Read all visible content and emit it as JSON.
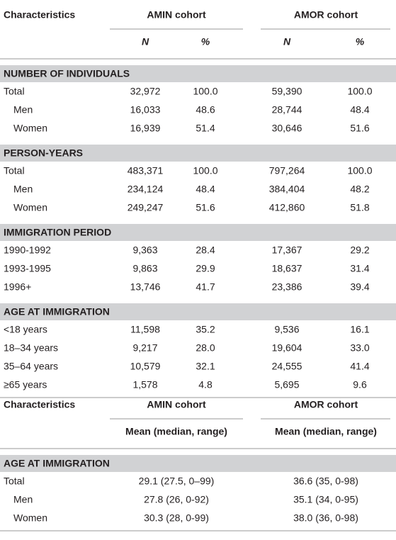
{
  "table1": {
    "header": {
      "characteristics": "Characteristics",
      "cohorts": [
        "AMIN cohort",
        "AMOR cohort"
      ],
      "subheaders": [
        "N",
        "%",
        "N",
        "%"
      ]
    },
    "sections": [
      {
        "title": "NUMBER OF INDIVIDUALS",
        "rows": [
          [
            "Total",
            "32,972",
            "100.0",
            "59,390",
            "100.0"
          ],
          [
            "Men",
            "16,033",
            "48.6",
            "28,744",
            "48.4"
          ],
          [
            "Women",
            "16,939",
            "51.4",
            "30,646",
            "51.6"
          ]
        ]
      },
      {
        "title": "PERSON-YEARS",
        "rows": [
          [
            "Total",
            "483,371",
            "100.0",
            "797,264",
            "100.0"
          ],
          [
            "Men",
            "234,124",
            "48.4",
            "384,404",
            "48.2"
          ],
          [
            "Women",
            "249,247",
            "51.6",
            "412,860",
            "51.8"
          ]
        ]
      },
      {
        "title": "IMMIGRATION PERIOD",
        "rows": [
          [
            "1990-1992",
            "9,363",
            "28.4",
            "17,367",
            "29.2"
          ],
          [
            "1993-1995",
            "9,863",
            "29.9",
            "18,637",
            "31.4"
          ],
          [
            "1996+",
            "13,746",
            "41.7",
            "23,386",
            "39.4"
          ]
        ]
      },
      {
        "title": "AGE AT IMMIGRATION",
        "rows": [
          [
            "<18 years",
            "11,598",
            "35.2",
            "9,536",
            "16.1"
          ],
          [
            "18–34 years",
            "9,217",
            "28.0",
            "19,604",
            "33.0"
          ],
          [
            "35–64 years",
            "10,579",
            "32.1",
            "24,555",
            "41.4"
          ],
          [
            "≥65 years",
            "1,578",
            "4.8",
            "5,695",
            "9.6"
          ]
        ]
      }
    ]
  },
  "table2": {
    "header": {
      "characteristics": "Characteristics",
      "cohorts": [
        "AMIN cohort",
        "AMOR cohort"
      ],
      "subheaders": [
        "Mean (median, range)",
        "Mean (median, range)"
      ]
    },
    "sections": [
      {
        "title": "AGE AT IMMIGRATION",
        "rows": [
          [
            "Total",
            "29.1 (27.5, 0–99)",
            "36.6 (35, 0-98)"
          ],
          [
            "Men",
            "27.8 (26, 0-92)",
            "35.1 (34, 0-95)"
          ],
          [
            "Women",
            "30.3 (28, 0-99)",
            "38.0 (36, 0-98)"
          ]
        ]
      }
    ]
  }
}
